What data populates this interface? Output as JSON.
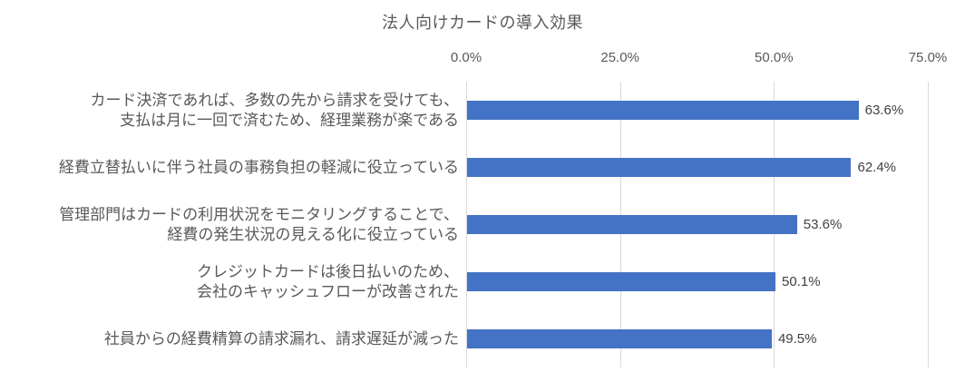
{
  "title": "法人向けカードの導入効果",
  "colors": {
    "bar": "#4472c4",
    "gridline": "#d9d9d9",
    "axis_text": "#595959",
    "value_text": "#404040"
  },
  "chart_data": {
    "type": "bar",
    "orientation": "horizontal",
    "title": "法人向けカードの導入効果",
    "categories": [
      "カード決済であれば、多数の先から請求を受けても、\n支払は月に一回で済むため、経理業務が楽である",
      "経費立替払いに伴う社員の事務負担の軽減に役立っている",
      "管理部門はカードの利用状況をモニタリングすることで、\n経費の発生状況の見える化に役立っている",
      "クレジットカードは後日払いのため、\n会社のキャッシュフローが改善された",
      "社員からの経費精算の請求漏れ、請求遅延が減った"
    ],
    "values": [
      63.6,
      62.4,
      53.6,
      50.1,
      49.5
    ],
    "value_labels": [
      "63.6%",
      "62.4%",
      "53.6%",
      "50.1%",
      "49.5%"
    ],
    "xlabel": "",
    "ylabel": "",
    "xlim": [
      0,
      75
    ],
    "x_tick_values": [
      0,
      25,
      50,
      75
    ],
    "x_tick_labels": [
      "0.0%",
      "25.0%",
      "50.0%",
      "75.0%"
    ],
    "grid": true,
    "legend": false
  }
}
